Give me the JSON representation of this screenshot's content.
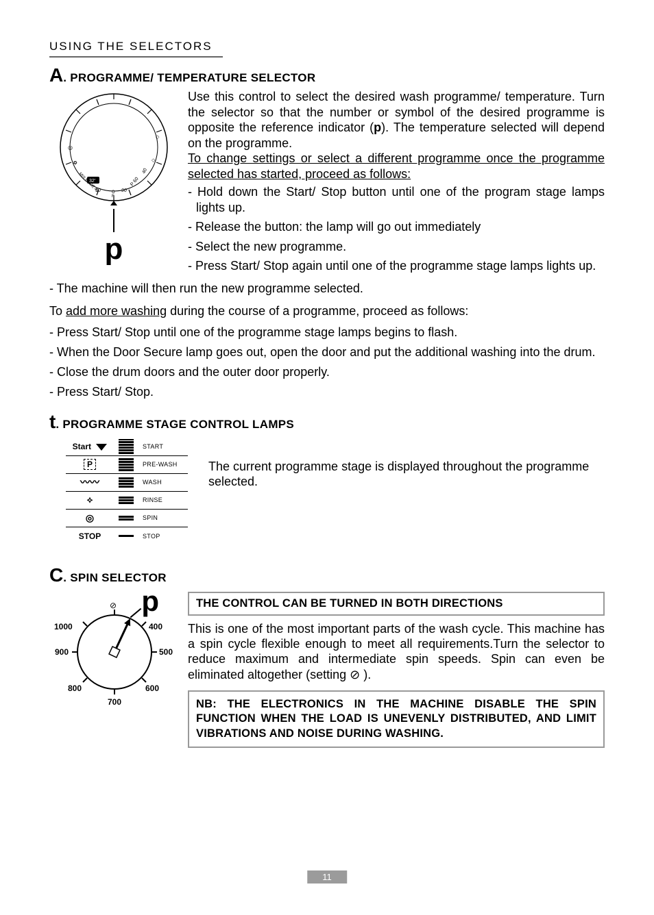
{
  "header": {
    "title": "USING THE SELECTORS"
  },
  "sectionA": {
    "letter": "A",
    "title": ". PROGRAMME/ TEMPERATURE SELECTOR",
    "p_marker": "p",
    "intro1": "Use this control to select the desired wash programme/ temperature. Turn the selector so that the number or symbol of the desired programme is opposite the reference indicator (",
    "intro_bold_p": "p",
    "intro2": "). The temperature selected will depend on the programme.",
    "change_underline": "To change settings or select a different programme once the programme selected has started, proceed as follows:",
    "steps_right": [
      "- Hold down the Start/ Stop button until one of the program stage lamps lights up.",
      "- Release the button: the lamp will go out immediately",
      "- Select the new programme.",
      "- Press Start/ Stop again until one of the programme stage lamps lights up."
    ],
    "step_full": "- The machine will then run the new programme selected.",
    "add_para_pre": "To ",
    "add_para_ul": "add more washing",
    "add_para_post": " during the course of a programme, proceed as follows:",
    "add_steps": [
      "- Press Start/ Stop until one of the programme stage lamps begins to flash.",
      "- When the Door Secure lamp goes out, open the door and put the additional washing into the drum.",
      "- Close the drum doors and the outer door properly.",
      "- Press Start/ Stop."
    ],
    "dial_labels": {
      "mix": "MIX",
      "MADE": "MADE",
      "n40": "40",
      "n32": "32",
      "n50": "50",
      "OF": "O F",
      "n90": "90",
      "P": "P",
      "n60": "60",
      "n40r": "40"
    }
  },
  "sectionT": {
    "letter": "t",
    "title": ". PROGRAMME STAGE CONTROL LAMPS",
    "body": "The current programme stage is displayed throughout the programme selected.",
    "stages": [
      {
        "icon_text": "Start",
        "label": "START",
        "bars": [
          2,
          3,
          3,
          3,
          3,
          3
        ],
        "bartype": "arrow"
      },
      {
        "icon_text": "P",
        "label": "PRE-WASH",
        "bars": [
          3,
          3,
          3,
          3,
          3
        ],
        "bartype": "p"
      },
      {
        "icon_text": "",
        "label": "WASH",
        "bars": [
          3,
          3,
          3,
          3
        ],
        "bartype": "wash"
      },
      {
        "icon_text": "",
        "label": "RINSE",
        "bars": [
          3,
          3,
          3
        ],
        "bartype": "rinse"
      },
      {
        "icon_text": "",
        "label": "SPIN",
        "bars": [
          3,
          3
        ],
        "bartype": "spin"
      },
      {
        "icon_text": "STOP",
        "label": "STOP",
        "bars": [
          3
        ],
        "bartype": "stop"
      }
    ]
  },
  "sectionC": {
    "letter": "C",
    "title": ". SPIN SELECTOR",
    "p_marker": "p",
    "box1": "THE CONTROL CAN BE TURNED IN BOTH DIRECTIONS",
    "body": "This is one of the most important parts of the wash cycle. This machine has a spin cycle flexible enough to meet all requirements.Turn the selector to reduce maximum and intermediate spin speeds. Spin can even be eliminated altogether (setting ",
    "body_end": " ).",
    "note": "NB: THE ELECTRONICS IN THE MACHINE DISABLE THE SPIN FUNCTION WHEN THE LOAD IS UNEVENLY DISTRIBUTED, AND LIMIT VIBRATIONS AND NOISE DURING WASHING.",
    "dial_labels": [
      "1000",
      "900",
      "800",
      "700",
      "600",
      "500",
      "400"
    ]
  },
  "page_number": "11",
  "colors": {
    "rule": "#666666",
    "box_border": "#999999",
    "pagenum_bg": "#9b9b9b"
  }
}
